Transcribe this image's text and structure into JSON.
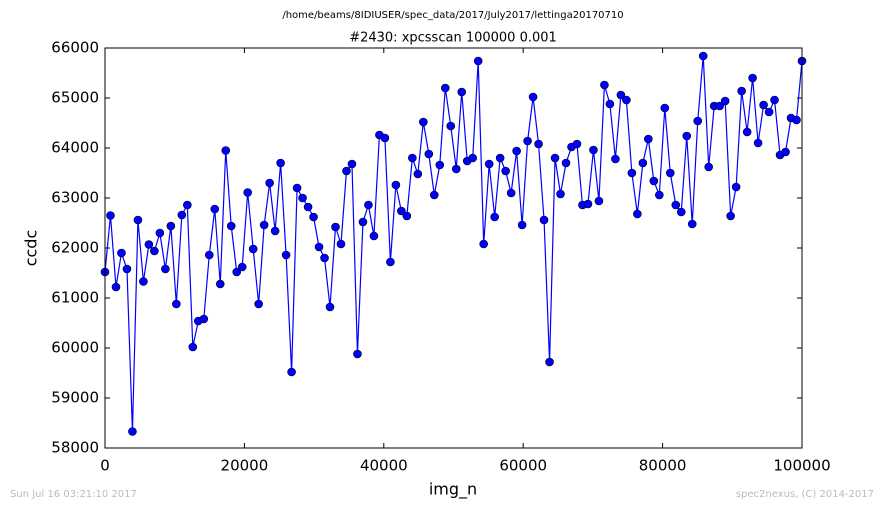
{
  "chart_data": {
    "type": "line",
    "title": "/home/beams/8IDIUSER/spec_data/2017/July2017/lettinga20170710",
    "subtitle": "#2430: xpcsscan 100000 0.001",
    "xlabel": "img_n",
    "ylabel": "ccdc",
    "annotations": [
      "Sun Jul 16 03:21:10 2017",
      "spec2nexus, (C) 2014-2017"
    ],
    "x": [
      0,
      787,
      1575,
      2362,
      3150,
      3937,
      4724,
      5512,
      6299,
      7087,
      7874,
      8661,
      9449,
      10236,
      11024,
      11811,
      12598,
      13386,
      14173,
      14961,
      15748,
      16535,
      17323,
      18110,
      18898,
      19685,
      20472,
      21260,
      22047,
      22835,
      23622,
      24409,
      25197,
      25984,
      26772,
      27559,
      28346,
      29134,
      29921,
      30709,
      31496,
      32283,
      33071,
      33858,
      34646,
      35433,
      36220,
      37008,
      37795,
      38583,
      39370,
      40157,
      40945,
      41732,
      42520,
      43307,
      44094,
      44882,
      45669,
      46457,
      47244,
      48031,
      48819,
      49606,
      50394,
      51181,
      51969,
      52756,
      53543,
      54331,
      55118,
      55906,
      56693,
      57480,
      58268,
      59055,
      59843,
      60630,
      61417,
      62205,
      62992,
      63780,
      64567,
      65354,
      66142,
      66929,
      67717,
      68504,
      69291,
      70079,
      70866,
      71654,
      72441,
      73228,
      74016,
      74803,
      75591,
      76378,
      77165,
      77953,
      78740,
      79528,
      80315,
      81102,
      81890,
      82677,
      83465,
      84252,
      85039,
      85827,
      86614,
      87402,
      88189,
      88976,
      89764,
      90551,
      91339,
      92126,
      92913,
      93701,
      94488,
      95276,
      96063,
      96850,
      97638,
      98425,
      99213,
      100000
    ],
    "series": [
      {
        "name": "ccdc",
        "color": "#0000ff",
        "values": [
          61520,
          62650,
          61220,
          61900,
          61580,
          58330,
          62560,
          61330,
          62070,
          61940,
          62300,
          61580,
          62440,
          60880,
          62660,
          62860,
          60020,
          60540,
          60580,
          61860,
          62780,
          61280,
          63950,
          62440,
          61520,
          61620,
          63110,
          61980,
          60880,
          62460,
          63300,
          62340,
          63700,
          61860,
          59520,
          63200,
          63000,
          62820,
          62620,
          62020,
          61800,
          60820,
          62420,
          62080,
          63540,
          63680,
          59880,
          62520,
          62860,
          62240,
          64260,
          64200,
          61720,
          63260,
          62740,
          62640,
          63800,
          63480,
          64520,
          63880,
          63060,
          63660,
          65200,
          64440,
          63580,
          65120,
          63740,
          63800,
          65740,
          62080,
          63680,
          62620,
          63800,
          63540,
          63100,
          63940,
          62460,
          64140,
          65020,
          64080,
          62560,
          59720,
          63800,
          63080,
          63700,
          64020,
          64080,
          62860,
          62880,
          63960,
          62940,
          65260,
          64880,
          63780,
          65060,
          64960,
          63500,
          62680,
          63700,
          64180,
          63340,
          63060,
          64800,
          63500,
          62860,
          62720,
          64240,
          62480,
          64540,
          65840,
          63620,
          64840,
          64840,
          64940,
          62640,
          63220,
          65140,
          64320,
          65400,
          64100,
          64860,
          64720,
          64960,
          63860,
          63920,
          64600,
          64560,
          65740
        ]
      }
    ],
    "xlim": [
      0,
      100000
    ],
    "xticks": [
      0,
      20000,
      40000,
      60000,
      80000,
      100000
    ],
    "ylim": [
      58000,
      66000
    ],
    "yticks": [
      58000,
      59000,
      60000,
      61000,
      62000,
      63000,
      64000,
      65000,
      66000
    ],
    "grid": false
  }
}
